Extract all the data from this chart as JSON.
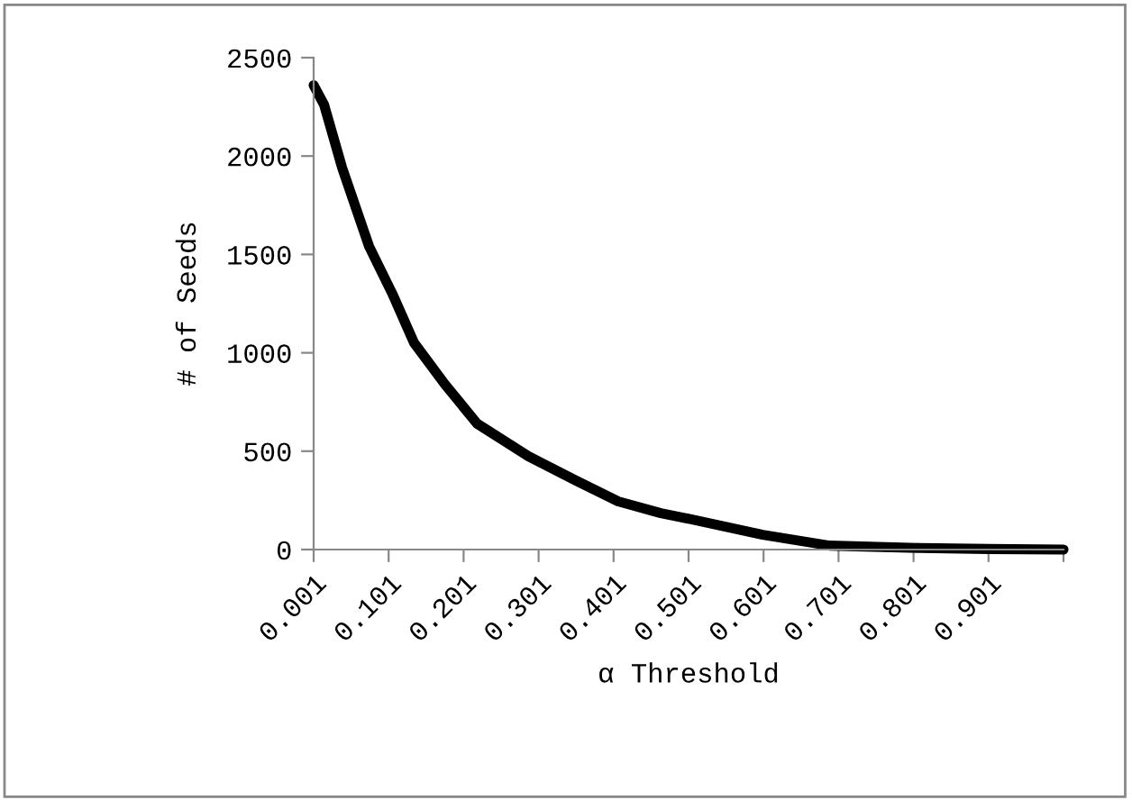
{
  "chart_data": {
    "type": "line",
    "xlabel": "α Threshold",
    "ylabel": "# of Seeds",
    "series": [
      {
        "color": "#000000",
        "x": [
          0.001,
          0.015,
          0.039,
          0.075,
          0.106,
          0.135,
          0.176,
          0.219,
          0.287,
          0.351,
          0.407,
          0.464,
          0.503,
          0.6,
          0.689,
          0.809,
          0.9,
          1.001
        ],
        "values": [
          2360,
          2260,
          1940,
          1540,
          1300,
          1050,
          840,
          640,
          475,
          350,
          245,
          185,
          155,
          75,
          20,
          8,
          3,
          0
        ]
      }
    ],
    "xlim": [
      0.001,
      1.001
    ],
    "xticks": [
      {
        "value": 0.001,
        "label": "0.001"
      },
      {
        "value": 0.101,
        "label": "0.101"
      },
      {
        "value": 0.201,
        "label": "0.201"
      },
      {
        "value": 0.301,
        "label": "0.301"
      },
      {
        "value": 0.401,
        "label": "0.401"
      },
      {
        "value": 0.501,
        "label": "0.501"
      },
      {
        "value": 0.601,
        "label": "0.601"
      },
      {
        "value": 0.701,
        "label": "0.701"
      },
      {
        "value": 0.801,
        "label": "0.801"
      },
      {
        "value": 0.901,
        "label": "0.901"
      },
      {
        "value": 1.001,
        "label": null
      }
    ],
    "ylim": [
      0,
      2500
    ],
    "yticks": [
      0,
      500,
      1000,
      1500,
      2000,
      2500
    ],
    "grid": false,
    "legend": false,
    "marker": "none",
    "line_style": "solid"
  }
}
